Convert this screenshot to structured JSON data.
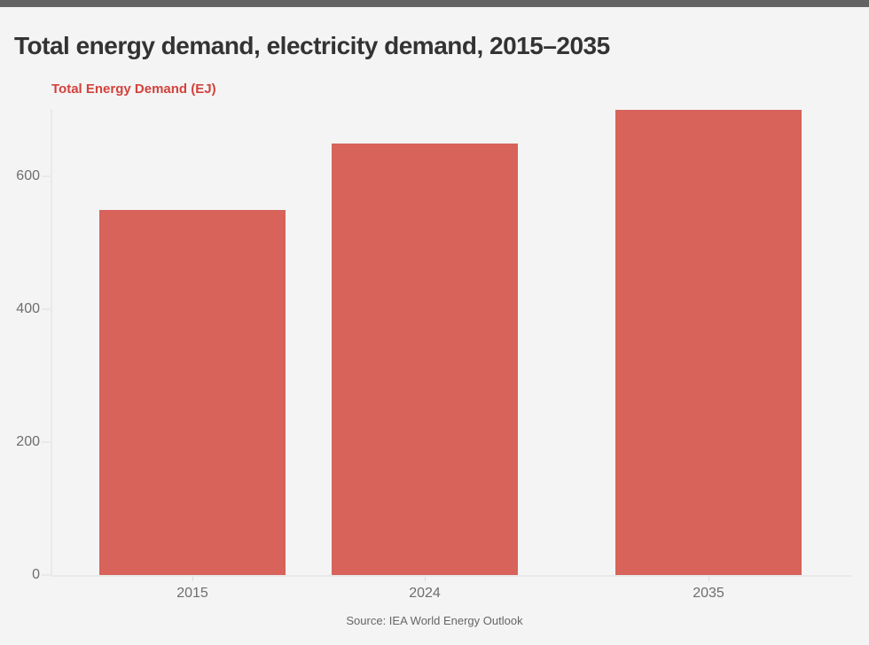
{
  "page": {
    "background_color": "#f4f4f4",
    "top_stripe_color": "#636363"
  },
  "header": {
    "title": "Total energy demand, electricity demand, 2015–2035",
    "subtitle": "Total Energy Demand (EJ)",
    "subtitle_color": "#d2423c"
  },
  "footer": {
    "source": "Source: IEA World Energy Outlook"
  },
  "chart_data": {
    "type": "bar",
    "categories": [
      "2015",
      "2024",
      "2035"
    ],
    "values": [
      550,
      650,
      700
    ],
    "title": "Total energy demand, electricity demand, 2015–2035",
    "xlabel": "",
    "ylabel": "Total Energy Demand (EJ)",
    "ylim": [
      0,
      700
    ],
    "yticks": [
      0,
      200,
      400,
      600
    ],
    "bar_color": "#d7635a",
    "grid": false,
    "legend": "none",
    "source": "Source: IEA World Energy Outlook"
  }
}
